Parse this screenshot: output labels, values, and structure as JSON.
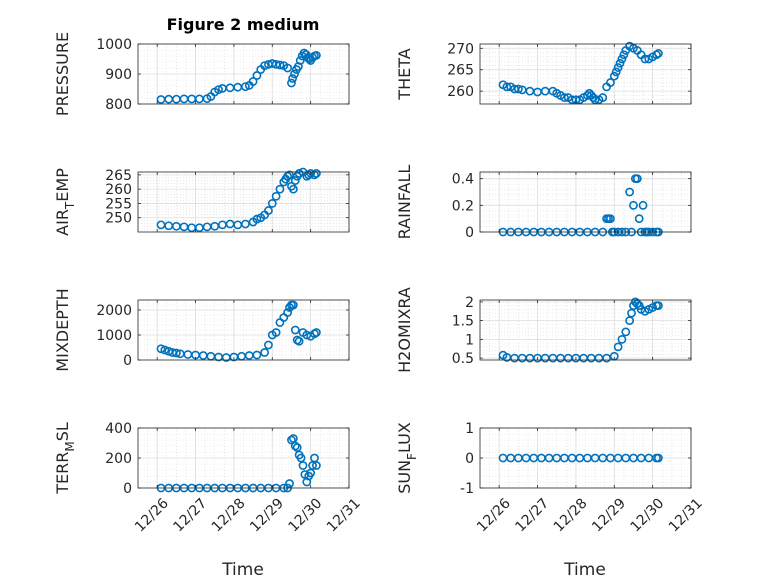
{
  "figure_title": "Figure 2 medium",
  "x_axis_label": "Time",
  "x_tick_labels": [
    "12/26",
    "12/27",
    "12/28",
    "12/29",
    "12/30",
    "12/31"
  ],
  "marker_color": "#0072BD",
  "chart_data": [
    {
      "type": "scatter",
      "ylabel": "PRESSURE",
      "ylim": [
        800,
        1000
      ],
      "yticks": [
        "800",
        "900",
        "1000"
      ],
      "ytick_values": [
        800,
        900,
        1000
      ],
      "x": [
        0.1,
        0.3,
        0.5,
        0.7,
        0.9,
        1.1,
        1.3,
        1.4,
        1.5,
        1.6,
        1.7,
        1.9,
        2.1,
        2.3,
        2.4,
        2.5,
        2.6,
        2.7,
        2.8,
        2.9,
        3.0,
        3.1,
        3.2,
        3.3,
        3.4,
        3.5,
        3.53,
        3.58,
        3.63,
        3.68,
        3.73,
        3.78,
        3.83,
        3.88,
        3.93,
        3.96,
        4.0,
        4.05,
        4.1,
        4.15
      ],
      "y": [
        815,
        816,
        816,
        817,
        817,
        817,
        818,
        825,
        840,
        848,
        852,
        854,
        856,
        858,
        862,
        875,
        895,
        915,
        928,
        932,
        935,
        932,
        930,
        928,
        920,
        870,
        885,
        900,
        915,
        925,
        945,
        960,
        970,
        965,
        955,
        950,
        945,
        955,
        960,
        962
      ]
    },
    {
      "type": "scatter",
      "ylabel": "THETA",
      "ylim": [
        257,
        271
      ],
      "yticks": [
        "260",
        "265",
        "270"
      ],
      "ytick_values": [
        260,
        265,
        270
      ],
      "x": [
        0.1,
        0.2,
        0.3,
        0.4,
        0.5,
        0.6,
        0.8,
        1.0,
        1.2,
        1.4,
        1.5,
        1.6,
        1.7,
        1.8,
        1.9,
        2.0,
        2.1,
        2.2,
        2.3,
        2.35,
        2.4,
        2.45,
        2.5,
        2.6,
        2.7,
        2.8,
        2.9,
        3.0,
        3.05,
        3.1,
        3.15,
        3.2,
        3.25,
        3.3,
        3.4,
        3.5,
        3.6,
        3.7,
        3.8,
        3.9,
        4.0,
        4.1,
        4.15
      ],
      "y": [
        261.5,
        261.0,
        261.0,
        260.5,
        260.5,
        260.3,
        260.0,
        259.8,
        260.0,
        260.0,
        259.5,
        259.0,
        258.5,
        258.5,
        258.0,
        258.0,
        258.0,
        258.5,
        259.0,
        259.5,
        259.0,
        258.5,
        258.0,
        258.0,
        258.5,
        261.0,
        262.0,
        263.5,
        264.5,
        265.5,
        266.5,
        267.5,
        268.5,
        269.5,
        270.5,
        270.0,
        269.5,
        268.5,
        267.5,
        267.5,
        268.0,
        268.5,
        268.8
      ]
    },
    {
      "type": "scatter",
      "ylabel": "AIR_TEMP",
      "ylabel_main": "AIR",
      "ylabel_sub": "T",
      "ylabel_rest": "EMP",
      "ylim": [
        245,
        266
      ],
      "yticks": [
        "250",
        "255",
        "260",
        "265"
      ],
      "ytick_values": [
        250,
        255,
        260,
        265
      ],
      "x": [
        0.1,
        0.3,
        0.5,
        0.7,
        0.9,
        1.1,
        1.3,
        1.5,
        1.7,
        1.9,
        2.1,
        2.3,
        2.5,
        2.6,
        2.7,
        2.8,
        2.9,
        3.0,
        3.1,
        3.2,
        3.3,
        3.35,
        3.4,
        3.45,
        3.5,
        3.55,
        3.6,
        3.65,
        3.7,
        3.8,
        3.9,
        3.95,
        4.0,
        4.1,
        4.15
      ],
      "y": [
        247.5,
        247.2,
        247.0,
        246.8,
        246.5,
        246.5,
        246.8,
        247.0,
        247.5,
        247.8,
        247.5,
        247.8,
        248.5,
        249.5,
        250.0,
        251.0,
        252.5,
        255.0,
        257.5,
        260.0,
        262.5,
        263.5,
        264.5,
        265.0,
        261.0,
        260.0,
        263.0,
        264.5,
        265.5,
        266.0,
        264.5,
        265.0,
        265.5,
        265.0,
        265.5
      ]
    },
    {
      "type": "scatter",
      "ylabel": "RAINFALL",
      "ylim": [
        0,
        0.45
      ],
      "yticks": [
        "0",
        "0.2",
        "0.4"
      ],
      "ytick_values": [
        0,
        0.2,
        0.4
      ],
      "x": [
        0.1,
        0.3,
        0.5,
        0.7,
        0.9,
        1.1,
        1.3,
        1.5,
        1.7,
        1.9,
        2.1,
        2.3,
        2.5,
        2.7,
        2.8,
        2.85,
        2.9,
        2.95,
        3.0,
        3.1,
        3.2,
        3.3,
        3.4,
        3.45,
        3.5,
        3.55,
        3.6,
        3.65,
        3.7,
        3.75,
        3.8,
        3.85,
        3.9,
        4.0,
        4.1,
        4.15
      ],
      "y": [
        0,
        0,
        0,
        0,
        0,
        0,
        0,
        0,
        0,
        0,
        0,
        0,
        0,
        0,
        0.1,
        0.1,
        0.1,
        0,
        0,
        0,
        0,
        0,
        0.3,
        0,
        0.2,
        0.4,
        0.4,
        0.1,
        0,
        0.2,
        0,
        0,
        0,
        0,
        0,
        0
      ]
    },
    {
      "type": "scatter",
      "ylabel": "MIXDEPTH",
      "ylim": [
        0,
        2400
      ],
      "yticks": [
        "0",
        "1000",
        "2000"
      ],
      "ytick_values": [
        0,
        1000,
        2000
      ],
      "x": [
        0.1,
        0.2,
        0.3,
        0.4,
        0.5,
        0.6,
        0.8,
        1.0,
        1.2,
        1.4,
        1.6,
        1.8,
        2.0,
        2.2,
        2.4,
        2.6,
        2.8,
        2.9,
        3.0,
        3.1,
        3.2,
        3.3,
        3.4,
        3.45,
        3.5,
        3.55,
        3.6,
        3.65,
        3.7,
        3.8,
        3.9,
        4.0,
        4.1,
        4.15
      ],
      "y": [
        450,
        400,
        350,
        300,
        280,
        250,
        220,
        200,
        180,
        150,
        120,
        100,
        120,
        150,
        180,
        200,
        300,
        600,
        1000,
        1100,
        1500,
        1700,
        1900,
        2100,
        2200,
        2200,
        1200,
        800,
        750,
        1100,
        1000,
        950,
        1050,
        1100
      ]
    },
    {
      "type": "scatter",
      "ylabel": "H2OMIXRA",
      "ylim": [
        0.45,
        2.05
      ],
      "yticks": [
        "0.5",
        "1",
        "1.5",
        "2"
      ],
      "ytick_values": [
        0.5,
        1,
        1.5,
        2
      ],
      "x": [
        0.1,
        0.2,
        0.4,
        0.6,
        0.8,
        1.0,
        1.2,
        1.4,
        1.6,
        1.8,
        2.0,
        2.2,
        2.4,
        2.6,
        2.8,
        3.0,
        3.1,
        3.2,
        3.3,
        3.4,
        3.45,
        3.5,
        3.55,
        3.6,
        3.65,
        3.7,
        3.8,
        3.9,
        4.0,
        4.1,
        4.15
      ],
      "y": [
        0.58,
        0.52,
        0.5,
        0.5,
        0.5,
        0.5,
        0.5,
        0.5,
        0.5,
        0.5,
        0.5,
        0.5,
        0.5,
        0.5,
        0.5,
        0.55,
        0.8,
        1.0,
        1.2,
        1.5,
        1.7,
        1.9,
        2.0,
        1.95,
        1.9,
        1.8,
        1.75,
        1.8,
        1.85,
        1.9,
        1.9
      ]
    },
    {
      "type": "scatter",
      "ylabel": "TERR_MSL",
      "ylabel_main": "TERR",
      "ylabel_sub": "M",
      "ylabel_rest": "SL",
      "ylim": [
        0,
        400
      ],
      "yticks": [
        "0",
        "200",
        "400"
      ],
      "ytick_values": [
        0,
        200,
        400
      ],
      "x": [
        0.1,
        0.3,
        0.5,
        0.7,
        0.9,
        1.1,
        1.3,
        1.5,
        1.7,
        1.9,
        2.1,
        2.3,
        2.5,
        2.7,
        2.9,
        3.1,
        3.3,
        3.4,
        3.45,
        3.5,
        3.55,
        3.6,
        3.65,
        3.7,
        3.75,
        3.8,
        3.85,
        3.9,
        3.95,
        4.0,
        4.05,
        4.1,
        4.15
      ],
      "y": [
        0,
        0,
        0,
        0,
        0,
        0,
        0,
        0,
        0,
        0,
        0,
        0,
        0,
        0,
        0,
        0,
        0,
        0,
        30,
        320,
        330,
        280,
        270,
        220,
        200,
        150,
        90,
        40,
        80,
        100,
        150,
        200,
        150
      ]
    },
    {
      "type": "scatter",
      "ylabel": "SUN_FLUX",
      "ylabel_main": "SUN",
      "ylabel_sub": "F",
      "ylabel_rest": "LUX",
      "ylim": [
        -1,
        1
      ],
      "yticks": [
        "-1",
        "0",
        "1"
      ],
      "ytick_values": [
        -1,
        0,
        1
      ],
      "x": [
        0.1,
        0.3,
        0.5,
        0.7,
        0.9,
        1.1,
        1.3,
        1.5,
        1.7,
        1.9,
        2.1,
        2.3,
        2.5,
        2.7,
        2.9,
        3.1,
        3.3,
        3.5,
        3.7,
        3.9,
        4.1,
        4.15
      ],
      "y": [
        0,
        0,
        0,
        0,
        0,
        0,
        0,
        0,
        0,
        0,
        0,
        0,
        0,
        0,
        0,
        0,
        0,
        0,
        0,
        0,
        0,
        0
      ]
    }
  ]
}
